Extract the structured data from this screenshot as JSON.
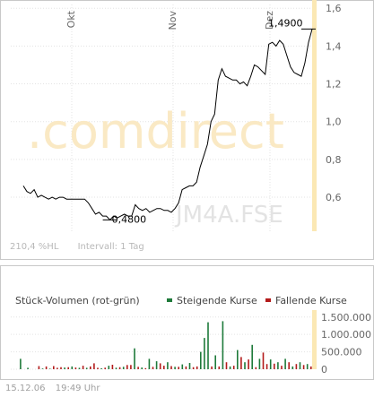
{
  "colors": {
    "price_line": "#000000",
    "grid": "#e3e3e3",
    "axis_band": "#fbe8b4",
    "rising": "#1e7a3a",
    "falling": "#b31b1b",
    "watermark": "#fae9c4",
    "watermark_code": "#e3e3e3"
  },
  "watermark": {
    "logo_parts": [
      ".com",
      "direct"
    ],
    "symbol": "JM4A.FSE"
  },
  "info": {
    "performance": "210,4 %HL",
    "interval": "Intervall: 1 Tag"
  },
  "footer": {
    "date": "15.12.06",
    "time": "19:49 Uhr"
  },
  "chart_data": [
    {
      "type": "line",
      "x_ticks": [
        "Okt",
        "Nov",
        "Dez"
      ],
      "y_ticks": [
        "0,6",
        "0,8",
        "1,0",
        "1,2",
        "1,4",
        "1,6"
      ],
      "ylim": [
        0.42,
        1.62
      ],
      "annotations": [
        {
          "label": "0,4800",
          "index": 24,
          "value": 0.48
        },
        {
          "label": "1,4900",
          "index": 79,
          "value": 1.49
        }
      ],
      "series": [
        {
          "values": [
            0.66,
            0.63,
            0.62,
            0.64,
            0.6,
            0.61,
            0.6,
            0.59,
            0.6,
            0.59,
            0.6,
            0.6,
            0.59,
            0.59,
            0.59,
            0.59,
            0.59,
            0.59,
            0.57,
            0.54,
            0.51,
            0.52,
            0.5,
            0.5,
            0.48,
            0.5,
            0.49,
            0.5,
            0.51,
            0.5,
            0.5,
            0.56,
            0.54,
            0.53,
            0.54,
            0.52,
            0.53,
            0.54,
            0.54,
            0.53,
            0.53,
            0.52,
            0.54,
            0.57,
            0.64,
            0.65,
            0.66,
            0.66,
            0.68,
            0.76,
            0.82,
            0.88,
            1.0,
            1.04,
            1.22,
            1.28,
            1.24,
            1.23,
            1.22,
            1.22,
            1.2,
            1.21,
            1.19,
            1.24,
            1.3,
            1.29,
            1.27,
            1.25,
            1.41,
            1.42,
            1.4,
            1.43,
            1.41,
            1.35,
            1.29,
            1.26,
            1.25,
            1.24,
            1.31,
            1.42,
            1.49
          ]
        }
      ]
    },
    {
      "type": "bar",
      "title": "Stück-Volumen (rot-grün)",
      "legend": [
        "Steigende Kurse",
        "Fallende Kurse"
      ],
      "y_ticks": [
        "0",
        "500.000",
        "1.000.000",
        "1.500.000"
      ],
      "ylim": [
        0,
        1700000
      ],
      "series": [
        {
          "name": "Steigende Kurse",
          "values": [
            [
              1,
              300000
            ],
            [
              3,
              40000
            ],
            [
              7,
              20000
            ],
            [
              9,
              15000
            ],
            [
              13,
              50000
            ],
            [
              15,
              80000
            ],
            [
              17,
              40000
            ],
            [
              19,
              40000
            ],
            [
              23,
              25000
            ],
            [
              25,
              100000
            ],
            [
              27,
              45000
            ],
            [
              29,
              70000
            ],
            [
              32,
              600000
            ],
            [
              34,
              50000
            ],
            [
              36,
              300000
            ],
            [
              38,
              230000
            ],
            [
              41,
              200000
            ],
            [
              43,
              70000
            ],
            [
              45,
              140000
            ],
            [
              47,
              180000
            ],
            [
              50,
              500000
            ],
            [
              51,
              900000
            ],
            [
              52,
              1350000
            ],
            [
              54,
              400000
            ],
            [
              56,
              1380000
            ],
            [
              58,
              80000
            ],
            [
              60,
              550000
            ],
            [
              62,
              200000
            ],
            [
              64,
              700000
            ],
            [
              66,
              300000
            ],
            [
              69,
              280000
            ],
            [
              71,
              200000
            ],
            [
              73,
              300000
            ],
            [
              75,
              80000
            ],
            [
              77,
              200000
            ],
            [
              79,
              150000
            ]
          ]
        },
        {
          "name": "Fallende Kurse",
          "values": [
            [
              6,
              90000
            ],
            [
              8,
              80000
            ],
            [
              10,
              90000
            ],
            [
              11,
              40000
            ],
            [
              12,
              60000
            ],
            [
              14,
              60000
            ],
            [
              16,
              50000
            ],
            [
              18,
              100000
            ],
            [
              20,
              80000
            ],
            [
              21,
              170000
            ],
            [
              22,
              40000
            ],
            [
              24,
              45000
            ],
            [
              26,
              130000
            ],
            [
              28,
              60000
            ],
            [
              30,
              120000
            ],
            [
              31,
              120000
            ],
            [
              33,
              70000
            ],
            [
              35,
              30000
            ],
            [
              37,
              70000
            ],
            [
              39,
              170000
            ],
            [
              40,
              100000
            ],
            [
              42,
              90000
            ],
            [
              44,
              70000
            ],
            [
              46,
              80000
            ],
            [
              48,
              60000
            ],
            [
              49,
              80000
            ],
            [
              53,
              80000
            ],
            [
              55,
              80000
            ],
            [
              57,
              200000
            ],
            [
              59,
              100000
            ],
            [
              61,
              350000
            ],
            [
              63,
              280000
            ],
            [
              65,
              60000
            ],
            [
              67,
              480000
            ],
            [
              68,
              150000
            ],
            [
              70,
              160000
            ],
            [
              72,
              100000
            ],
            [
              74,
              200000
            ],
            [
              76,
              150000
            ],
            [
              78,
              120000
            ],
            [
              80,
              80000
            ]
          ]
        }
      ]
    }
  ]
}
